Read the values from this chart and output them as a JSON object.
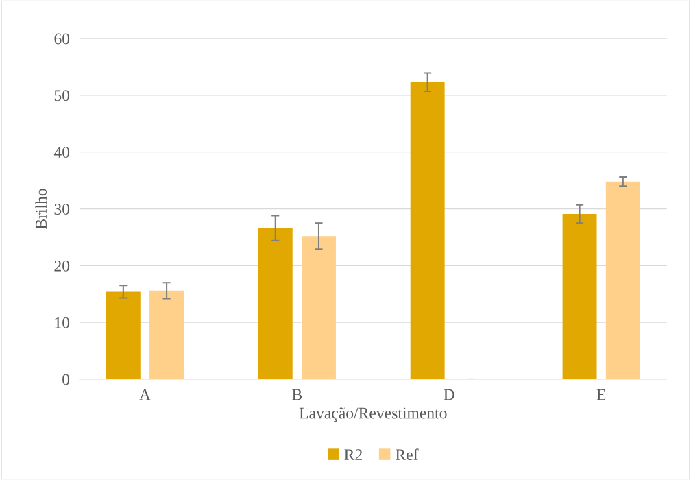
{
  "chart_data": {
    "type": "bar",
    "xlabel": "Lavação/Revestimento",
    "ylabel": "Brilho",
    "categories": [
      "A",
      "B",
      "D",
      "E"
    ],
    "series": [
      {
        "name": "R2",
        "color": "#e0a800",
        "values": [
          15.4,
          26.6,
          52.3,
          29.1
        ],
        "errors": [
          1.1,
          2.2,
          1.6,
          1.6
        ]
      },
      {
        "name": "Ref",
        "color": "#ffd08a",
        "values": [
          15.6,
          25.2,
          0,
          34.8
        ],
        "errors": [
          1.4,
          2.3,
          0,
          0.8
        ]
      }
    ],
    "ylim": [
      0,
      60
    ],
    "yticks": [
      0,
      10,
      20,
      30,
      40,
      50,
      60
    ],
    "grid": "y",
    "legend": "bottom"
  }
}
